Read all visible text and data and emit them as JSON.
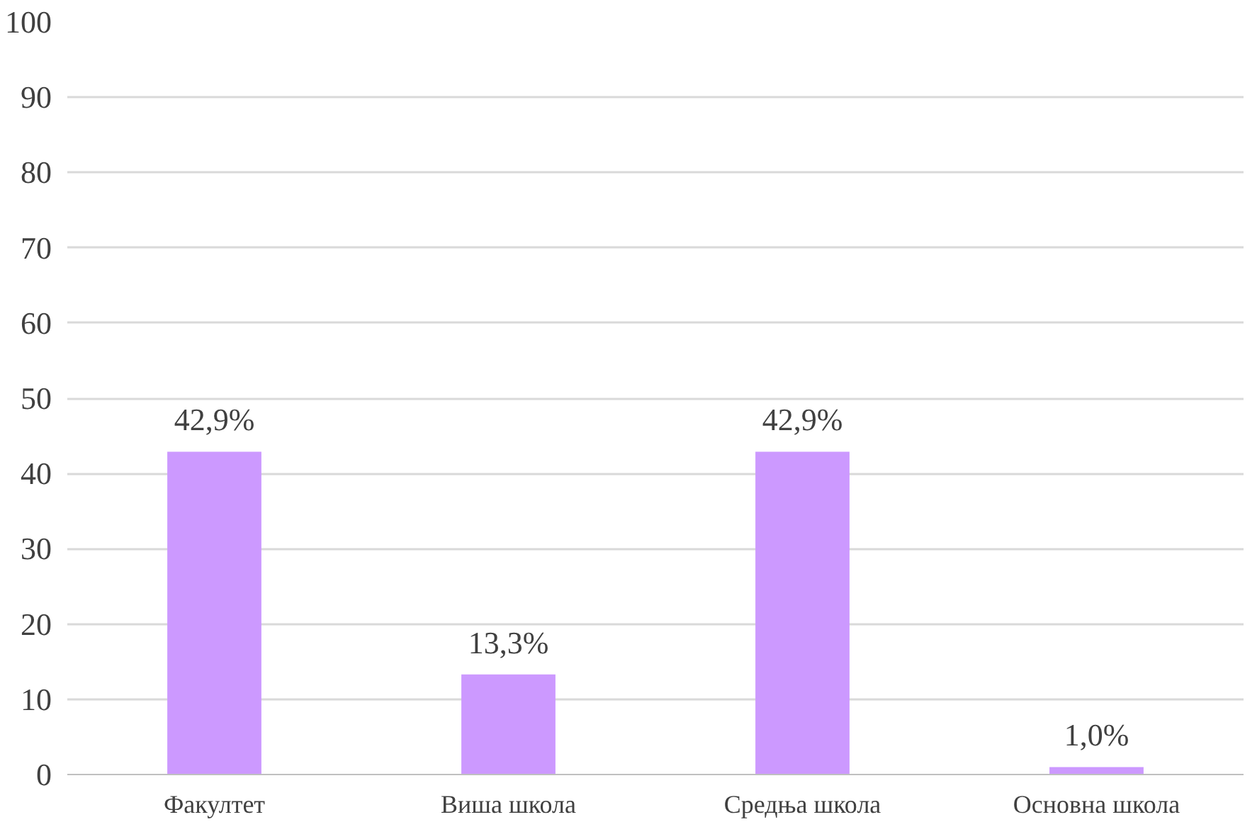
{
  "chart_data": {
    "type": "bar",
    "categories": [
      "Факултет",
      "Виша школа",
      "Средња школа",
      "Основна школа"
    ],
    "values": [
      42.9,
      13.3,
      42.9,
      1.0
    ],
    "value_labels": [
      "42,9%",
      "13,3%",
      "42,9%",
      "1,0%"
    ],
    "color": "#cc99ff",
    "ylim": [
      0,
      100
    ],
    "yticks": [
      0,
      10,
      20,
      30,
      40,
      50,
      60,
      70,
      80,
      90,
      100
    ],
    "grid": "y"
  }
}
